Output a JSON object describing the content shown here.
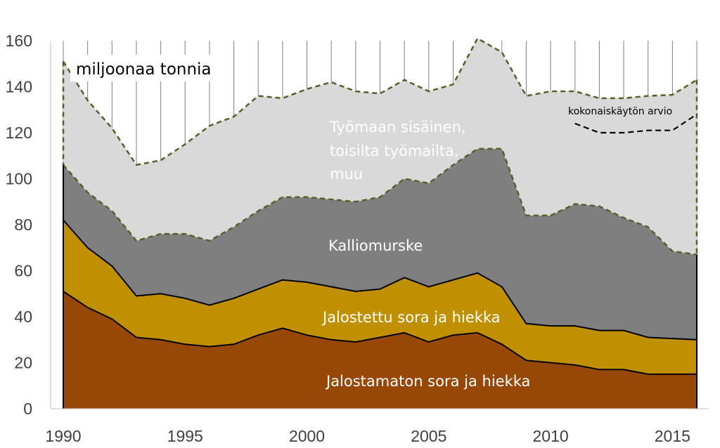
{
  "chart_data": {
    "type": "area",
    "stacked": true,
    "unit_label": "miljoonaa tonnia",
    "x": [
      1990,
      1991,
      1992,
      1993,
      1994,
      1995,
      1996,
      1997,
      1998,
      1999,
      2000,
      2001,
      2002,
      2003,
      2004,
      2005,
      2006,
      2007,
      2008,
      2009,
      2010,
      2011,
      2012,
      2013,
      2014,
      2015,
      2016
    ],
    "xlim": [
      1990,
      2016
    ],
    "ylim": [
      0,
      160
    ],
    "x_ticks": [
      "1990",
      "1995",
      "2000",
      "2005",
      "2010",
      "2015"
    ],
    "y_ticks": [
      "0",
      "20",
      "40",
      "60",
      "80",
      "100",
      "120",
      "140",
      "160"
    ],
    "grid": "vertical",
    "series": [
      {
        "name": "Jalostamaton sora ja hiekka",
        "color": "#984806",
        "values": [
          51,
          44,
          39,
          31,
          30,
          28,
          27,
          28,
          32,
          35,
          32,
          30,
          29,
          31,
          33,
          29,
          32,
          33,
          28,
          21,
          20,
          19,
          17,
          17,
          15,
          15,
          15
        ]
      },
      {
        "name": "Jalostettu sora ja hiekka",
        "color": "#c09000",
        "values": [
          31,
          26,
          23,
          18,
          20,
          20,
          18,
          20,
          20,
          21,
          23,
          23,
          22,
          21,
          24,
          24,
          24,
          26,
          25,
          16,
          16,
          17,
          17,
          17,
          16,
          15.5,
          15
        ]
      },
      {
        "name": "Kalliomurske",
        "color": "#7f7f7f",
        "values": [
          24,
          24,
          24,
          24,
          26,
          28,
          28,
          31,
          34,
          36,
          37,
          38,
          39,
          40,
          43,
          45,
          50,
          54,
          60,
          47,
          48,
          53,
          54,
          49,
          48,
          38,
          37
        ]
      },
      {
        "name": "Työmaan sisäinen, toisilta työmailta, muu",
        "name_lines": [
          "Työmaan sisäinen,",
          "toisilta työmailta,",
          "muu"
        ],
        "color": "#d9d9d9",
        "values": [
          45,
          40,
          36,
          33,
          32,
          39,
          50,
          48,
          50,
          43,
          47,
          51,
          48,
          45,
          43,
          40,
          35,
          48,
          42,
          52,
          54,
          49,
          47,
          52,
          57,
          68,
          76
        ]
      }
    ],
    "estimate_line": {
      "name": "kokonaiskäytön arvio",
      "x": [
        2011,
        2012,
        2013,
        2014,
        2015,
        2016
      ],
      "values": [
        124,
        120,
        120,
        121,
        121,
        128
      ]
    },
    "colors": {
      "outline": "#4f6228",
      "boundary": "#000000",
      "grid": "#7f7f7f",
      "tick_text": "#404040"
    }
  }
}
